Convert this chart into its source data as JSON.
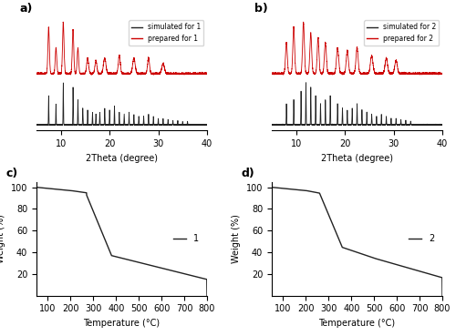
{
  "fig_width": 5.0,
  "fig_height": 3.69,
  "dpi": 100,
  "bg_color": "#ffffff",
  "panel_labels": [
    "a)",
    "b)",
    "c)",
    "d)"
  ],
  "xrd_xlim": [
    5,
    40
  ],
  "xrd_xticks": [
    10,
    20,
    30,
    40
  ],
  "xrd_xlabel": "2Theta (degree)",
  "tga_xlim": [
    50,
    800
  ],
  "tga_xticks": [
    100,
    200,
    300,
    400,
    500,
    600,
    700,
    800
  ],
  "tga_ylim": [
    0,
    105
  ],
  "tga_yticks": [
    20,
    40,
    60,
    80,
    100
  ],
  "tga_xlabel": "Temperature (°C)",
  "tga_ylabel": "Weight (%)",
  "legend_1a": [
    "simulated for 1",
    "prepared for 1"
  ],
  "legend_1b": [
    "simulated for 2",
    "prepared for 2"
  ],
  "legend_1c": "1",
  "legend_1d": "2",
  "sim_color": "#222222",
  "prep_color": "#cc0000",
  "tga_color": "#222222"
}
